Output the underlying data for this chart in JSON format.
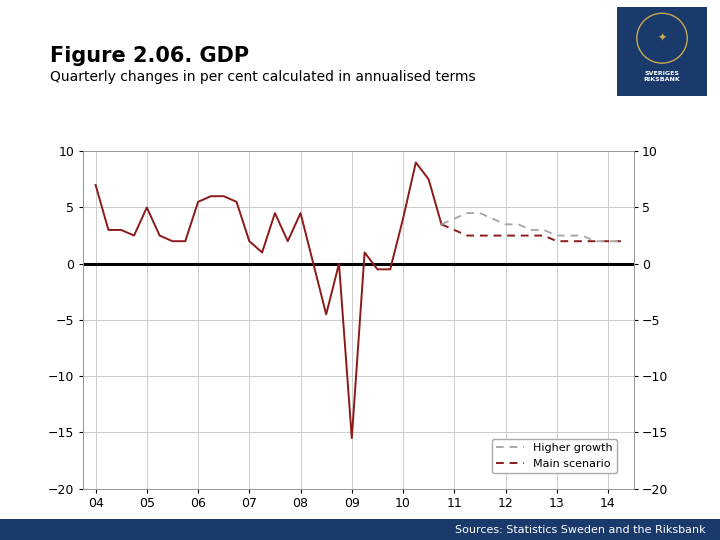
{
  "title": "Figure 2.06. GDP",
  "subtitle": "Quarterly changes in per cent calculated in annualised terms",
  "sources": "Sources: Statistics Sweden and the Riksbank",
  "background_color": "#ffffff",
  "plot_bg_color": "#ffffff",
  "grid_color": "#cccccc",
  "line_color": "#8B1A1A",
  "higher_growth_color": "#aaaaaa",
  "ylim": [
    -20,
    10
  ],
  "yticks": [
    -20,
    -15,
    -10,
    -5,
    0,
    5,
    10
  ],
  "xticks": [
    4,
    5,
    6,
    7,
    8,
    9,
    10,
    11,
    12,
    13,
    14
  ],
  "xtick_labels": [
    "04",
    "05",
    "06",
    "07",
    "08",
    "09",
    "10",
    "11",
    "12",
    "13",
    "14"
  ],
  "solid_data_x": [
    4.0,
    4.25,
    4.5,
    4.75,
    5.0,
    5.25,
    5.5,
    5.75,
    6.0,
    6.25,
    6.5,
    6.75,
    7.0,
    7.25,
    7.5,
    7.75,
    8.0,
    8.25,
    8.5,
    8.75,
    9.0,
    9.25,
    9.5,
    9.75,
    10.0,
    10.25,
    10.5,
    10.75
  ],
  "solid_data_y": [
    7.0,
    3.0,
    3.0,
    2.5,
    5.0,
    2.5,
    2.0,
    2.0,
    5.5,
    6.0,
    6.0,
    5.5,
    2.0,
    1.0,
    4.5,
    2.0,
    4.5,
    0.0,
    -4.5,
    0.0,
    -15.5,
    1.0,
    -0.5,
    -0.5,
    4.0,
    9.0,
    7.5,
    3.5
  ],
  "dashed_main_x": [
    10.75,
    11.0,
    11.25,
    11.5,
    11.75,
    12.0,
    12.25,
    12.5,
    12.75,
    13.0,
    13.25,
    13.5,
    13.75,
    14.0,
    14.25
  ],
  "dashed_main_y": [
    3.5,
    3.0,
    2.5,
    2.5,
    2.5,
    2.5,
    2.5,
    2.5,
    2.5,
    2.0,
    2.0,
    2.0,
    2.0,
    2.0,
    2.0
  ],
  "dashed_higher_x": [
    10.75,
    11.0,
    11.25,
    11.5,
    11.75,
    12.0,
    12.25,
    12.5,
    12.75,
    13.0,
    13.25,
    13.5,
    13.75,
    14.0,
    14.25
  ],
  "dashed_higher_y": [
    3.5,
    4.0,
    4.5,
    4.5,
    4.0,
    3.5,
    3.5,
    3.0,
    3.0,
    2.5,
    2.5,
    2.5,
    2.0,
    2.0,
    2.0
  ],
  "legend_higher_label": "Higher growth",
  "legend_main_label": "Main scenario",
  "footer_bar_color": "#1a3a6b",
  "logo_color": "#1a3a6b",
  "title_fontsize": 15,
  "subtitle_fontsize": 10,
  "tick_fontsize": 9,
  "legend_fontsize": 8,
  "sources_fontsize": 8
}
